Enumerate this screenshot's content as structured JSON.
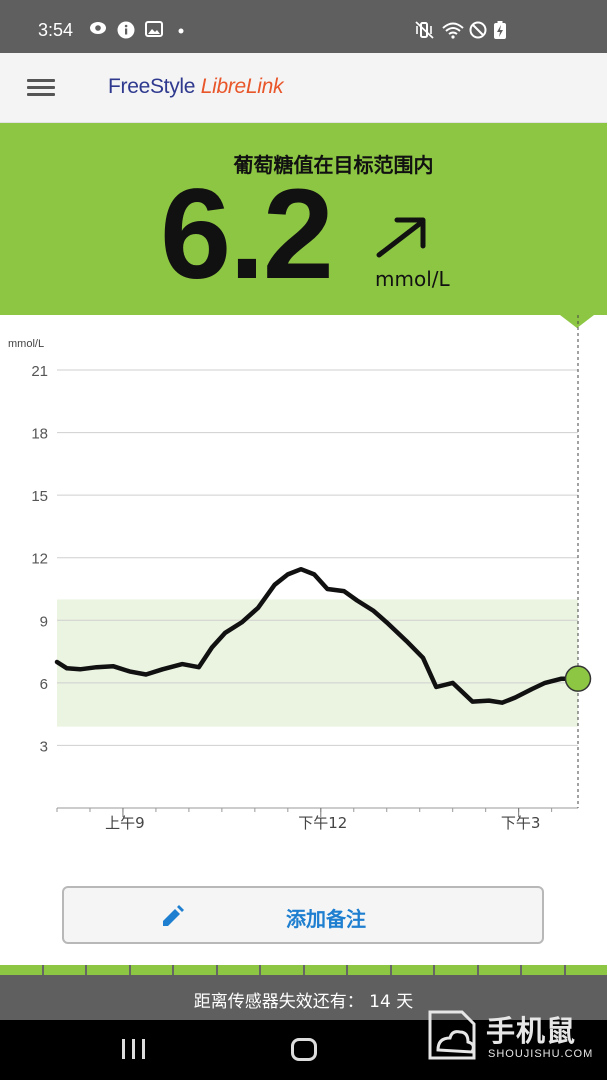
{
  "status_bar": {
    "time": "3:54",
    "icons_left": [
      "eye-comfort-icon",
      "info-icon",
      "image-icon",
      "notification-dot-icon"
    ],
    "icons_right": [
      "mute-vibrate-icon",
      "wifi-icon",
      "do-not-disturb-icon",
      "battery-charging-icon"
    ]
  },
  "app_bar": {
    "logo_part1": "FreeStyle ",
    "logo_part2": "LibreLink",
    "logo_colors": {
      "part1": "#2f3a8f",
      "part2": "#e8562a"
    }
  },
  "banner": {
    "title": "葡萄糖值在目标范围内",
    "reading": "6.2",
    "unit": "mmol/L",
    "trend": "rising",
    "color": "#8dc643"
  },
  "chart_data": {
    "type": "line",
    "y_unit_label": "mmol/L",
    "ylim": [
      0,
      21
    ],
    "yticks": [
      3,
      6,
      9,
      12,
      15,
      18,
      21
    ],
    "target_range": [
      3.9,
      10.0
    ],
    "target_range_color": "#eaf4e1",
    "xlim": [
      8.0,
      15.9
    ],
    "x_ticks": [
      {
        "x": 9,
        "label": "上午9"
      },
      {
        "x": 12,
        "label": "下午12"
      },
      {
        "x": 15,
        "label": "下午3"
      }
    ],
    "series": [
      {
        "line_color": "#111111",
        "x": [
          8.0,
          8.15,
          8.35,
          8.6,
          8.85,
          9.1,
          9.35,
          9.6,
          9.9,
          10.15,
          10.35,
          10.55,
          10.8,
          11.05,
          11.3,
          11.5,
          11.7,
          11.9,
          12.1,
          12.35,
          12.55,
          12.8,
          13.0,
          13.3,
          13.55,
          13.75,
          14.0,
          14.3,
          14.55,
          14.75,
          14.95,
          15.2,
          15.4,
          15.65,
          15.9
        ],
        "y": [
          7.0,
          6.7,
          6.65,
          6.75,
          6.8,
          6.55,
          6.4,
          6.65,
          6.9,
          6.75,
          7.7,
          8.4,
          8.9,
          9.6,
          10.7,
          11.2,
          11.45,
          11.2,
          10.5,
          10.4,
          9.95,
          9.45,
          8.9,
          8.0,
          7.2,
          5.8,
          6.0,
          5.1,
          5.15,
          5.05,
          5.3,
          5.7,
          6.0,
          6.2,
          6.2
        ]
      }
    ],
    "current_point": {
      "x": 15.9,
      "y": 6.2,
      "color": "#8dc643"
    },
    "grid": true
  },
  "note_button": {
    "label": "添加备注",
    "icon": "pencil-icon",
    "color": "#1e7fd0"
  },
  "sensor": {
    "text": "距离传感器失效还有：  14 天",
    "days_left": 14,
    "segments_total": 14
  },
  "nav_bar": {
    "buttons": [
      "recents-button",
      "home-button"
    ]
  },
  "watermark": {
    "title": "手机鼠",
    "subtitle": "SHOUJISHU.COM"
  }
}
